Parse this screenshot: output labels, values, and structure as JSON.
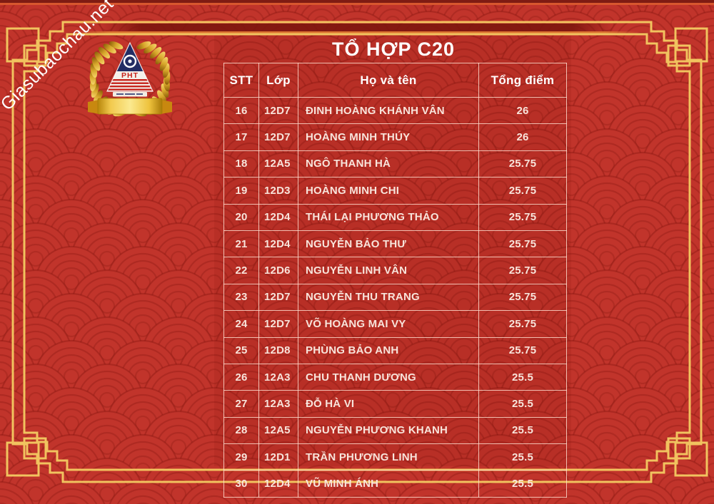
{
  "watermark": {
    "text": "Giasubaochau.net"
  },
  "title": "TỔ HỢP C20",
  "logo": {
    "emblem_text": "PHT"
  },
  "table": {
    "headers": {
      "stt": "STT",
      "lop": "Lớp",
      "name": "Họ và tên",
      "score": "Tổng điểm"
    },
    "rows": [
      {
        "stt": "16",
        "lop": "12D7",
        "name": "ĐINH HOÀNG KHÁNH VÂN",
        "score": "26"
      },
      {
        "stt": "17",
        "lop": "12D7",
        "name": "HOÀNG MINH THÚY",
        "score": "26"
      },
      {
        "stt": "18",
        "lop": "12A5",
        "name": "NGÔ THANH HÀ",
        "score": "25.75"
      },
      {
        "stt": "19",
        "lop": "12D3",
        "name": "HOÀNG MINH CHI",
        "score": "25.75"
      },
      {
        "stt": "20",
        "lop": "12D4",
        "name": "THÁI LẠI PHƯƠNG THẢO",
        "score": "25.75"
      },
      {
        "stt": "21",
        "lop": "12D4",
        "name": "NGUYỄN BẢO THƯ",
        "score": "25.75"
      },
      {
        "stt": "22",
        "lop": "12D6",
        "name": "NGUYỄN LINH VÂN",
        "score": "25.75"
      },
      {
        "stt": "23",
        "lop": "12D7",
        "name": "NGUYỄN THU TRANG",
        "score": "25.75"
      },
      {
        "stt": "24",
        "lop": "12D7",
        "name": "VÕ HOÀNG MAI VY",
        "score": "25.75"
      },
      {
        "stt": "25",
        "lop": "12D8",
        "name": "PHÙNG BẢO ANH",
        "score": "25.75"
      },
      {
        "stt": "26",
        "lop": "12A3",
        "name": "CHU THANH DƯƠNG",
        "score": "25.5"
      },
      {
        "stt": "27",
        "lop": "12A3",
        "name": "ĐỖ HÀ VI",
        "score": "25.5"
      },
      {
        "stt": "28",
        "lop": "12A5",
        "name": "NGUYỄN PHƯƠNG KHANH",
        "score": "25.5"
      },
      {
        "stt": "29",
        "lop": "12D1",
        "name": "TRẦN PHƯƠNG LINH",
        "score": "25.5"
      },
      {
        "stt": "30",
        "lop": "12D4",
        "name": "VŨ MINH ÁNH",
        "score": "25.5"
      }
    ]
  },
  "colors": {
    "background_red": "#c1342b",
    "pattern_arc_red": "#7d0f0a",
    "frame_gold": "#f1c35f",
    "maroon_band": "#7e160e",
    "orange_rule": "#dd7632",
    "table_border": "#ffded0",
    "title_text": "#ffffff",
    "row_text": "#f8e4db",
    "emblem_navy": "#232d63",
    "emblem_red": "#c6241c"
  }
}
